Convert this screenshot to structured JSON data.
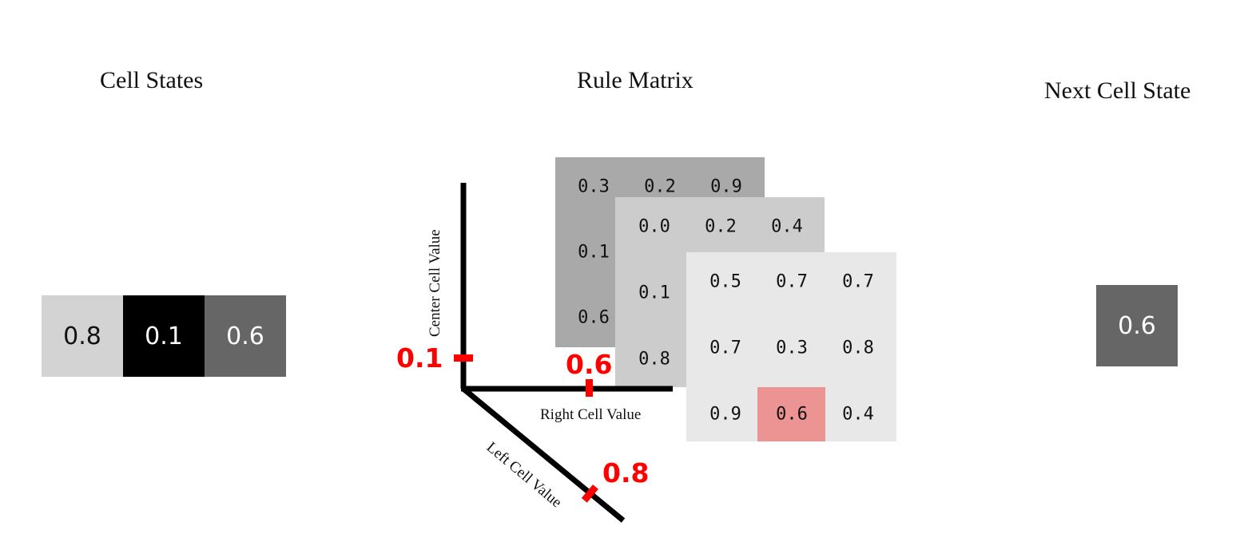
{
  "titles": {
    "cell_states": "Cell States",
    "rule_matrix": "Rule Matrix",
    "next_cell_state": "Next Cell State"
  },
  "cell_states": [
    {
      "value": "0.8",
      "bg": "#d3d3d3",
      "fg": "#111111"
    },
    {
      "value": "0.1",
      "bg": "#000000",
      "fg": "#ffffff"
    },
    {
      "value": "0.6",
      "bg": "#666666",
      "fg": "#ffffff"
    }
  ],
  "next_cell": {
    "value": "0.6",
    "bg": "#666666",
    "fg": "#ffffff"
  },
  "rule_matrix": {
    "back_plane": {
      "bg": "#a9a9a9",
      "values": [
        "0.3",
        "0.2",
        "0.9",
        "0.1",
        "0.6"
      ]
    },
    "middle_plane": {
      "bg": "#cccccc",
      "values": [
        "0.0",
        "0.2",
        "0.4",
        "0.1",
        "0.8"
      ]
    },
    "front_plane": {
      "bg": "#e8e8e8",
      "rows": [
        [
          "0.5",
          "0.7",
          "0.7"
        ],
        [
          "0.7",
          "0.3",
          "0.8"
        ],
        [
          "0.9",
          "0.6",
          "0.4"
        ]
      ]
    },
    "highlight_color": "#ec9494"
  },
  "axes": {
    "center_label": "Center Cell Value",
    "right_label": "Right Cell Value",
    "left_label": "Left Cell Value",
    "center_value": "0.1",
    "right_value": "0.6",
    "left_value": "0.8",
    "marker_color": "#ff0000"
  }
}
